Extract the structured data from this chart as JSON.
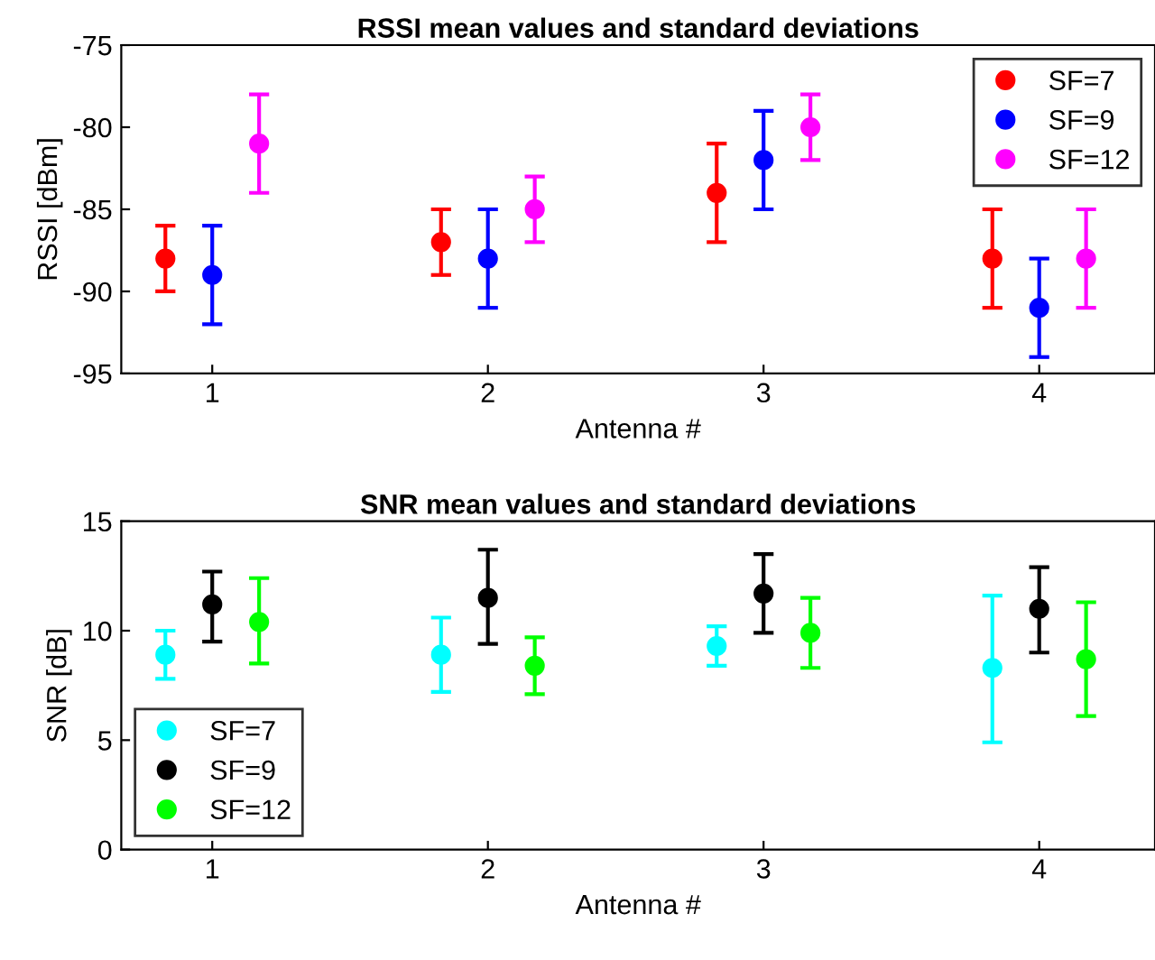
{
  "chart_data": [
    {
      "type": "scatter",
      "title": "RSSI mean values and standard deviations",
      "xlabel": "Antenna #",
      "ylabel": "RSSI [dBm]",
      "xlim": [
        0.67,
        4.42
      ],
      "xticks": [
        1,
        2,
        3,
        4
      ],
      "ylim": [
        -95,
        -75
      ],
      "yticks": [
        -95,
        -90,
        -85,
        -80,
        -75
      ],
      "grid": false,
      "legend": "top right",
      "marker": "circle",
      "series": [
        {
          "name": "SF=7",
          "color": "#ff0000",
          "x": [
            0.83,
            1.83,
            2.83,
            3.83
          ],
          "values": [
            -88,
            -87,
            -84,
            -88
          ],
          "errors": [
            2,
            2,
            3,
            3
          ]
        },
        {
          "name": "SF=9",
          "color": "#0000ff",
          "x": [
            1,
            2,
            3,
            4
          ],
          "values": [
            -89,
            -88,
            -82,
            -91
          ],
          "errors": [
            3,
            3,
            3,
            3
          ]
        },
        {
          "name": "SF=12",
          "color": "#ff00ff",
          "x": [
            1.17,
            2.17,
            3.17,
            4.17
          ],
          "values": [
            -81,
            -85,
            -80,
            -88
          ],
          "errors": [
            3,
            2,
            2,
            3
          ]
        }
      ]
    },
    {
      "type": "scatter",
      "title": "SNR mean values and standard deviations",
      "xlabel": "Antenna #",
      "ylabel": "SNR [dB]",
      "xlim": [
        0.67,
        4.42
      ],
      "xticks": [
        1,
        2,
        3,
        4
      ],
      "ylim": [
        0,
        15
      ],
      "yticks": [
        0,
        5,
        10,
        15
      ],
      "grid": false,
      "legend": "bottom left",
      "marker": "circle",
      "series": [
        {
          "name": "SF=7",
          "color": "#00ffff",
          "x": [
            0.83,
            1.83,
            2.83,
            3.83
          ],
          "values": [
            8.9,
            8.9,
            9.3,
            8.3
          ],
          "errors": [
            [
              7.8,
              10.0
            ],
            [
              7.2,
              10.6
            ],
            [
              8.4,
              10.2
            ],
            [
              4.9,
              11.6
            ]
          ]
        },
        {
          "name": "SF=9",
          "color": "#000000",
          "x": [
            1,
            2,
            3,
            4
          ],
          "values": [
            11.2,
            11.5,
            11.7,
            11.0
          ],
          "errors": [
            [
              9.5,
              12.7
            ],
            [
              9.4,
              13.7
            ],
            [
              9.9,
              13.5
            ],
            [
              9.0,
              12.9
            ]
          ]
        },
        {
          "name": "SF=12",
          "color": "#00ff00",
          "x": [
            1.17,
            2.17,
            3.17,
            4.17
          ],
          "values": [
            10.4,
            8.4,
            9.9,
            8.7
          ],
          "errors": [
            [
              8.5,
              12.4
            ],
            [
              7.1,
              9.7
            ],
            [
              8.3,
              11.5
            ],
            [
              6.1,
              11.3
            ]
          ]
        }
      ]
    }
  ]
}
